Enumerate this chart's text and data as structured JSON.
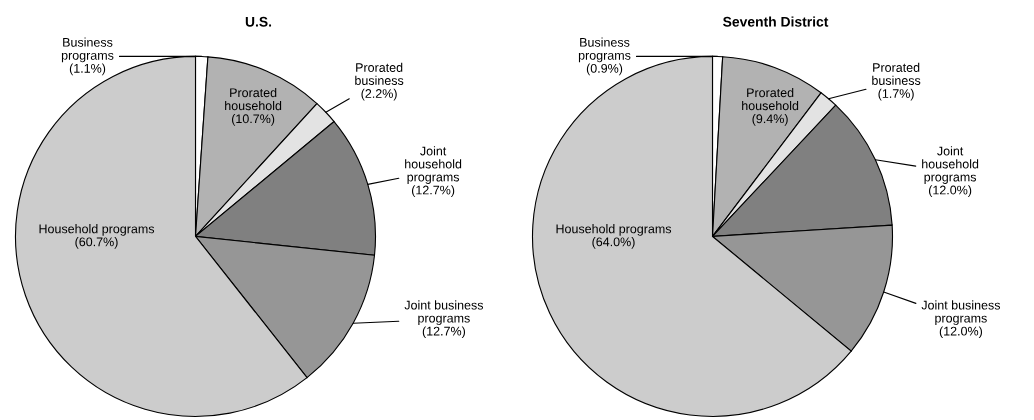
{
  "chart_data": [
    {
      "type": "pie",
      "title": "U.S.",
      "categories": [
        "Business\nprograms",
        "Prorated\nhousehold",
        "Prorated\nbusiness",
        "Joint\nhousehold\nprograms",
        "Joint business\nprograms",
        "Household programs"
      ],
      "values": [
        1.1,
        10.7,
        2.2,
        12.7,
        12.7,
        60.7
      ],
      "colors": [
        "#ffffff",
        "#b2b2b2",
        "#e3e3e3",
        "#808080",
        "#969696",
        "#cccccc"
      ],
      "value_labels": [
        "(1.1%)",
        "(10.7%)",
        "(2.2%)",
        "(12.7%)",
        "(12.7%)",
        "(60.7%)"
      ]
    },
    {
      "type": "pie",
      "title": "Seventh District",
      "categories": [
        "Business\nprograms",
        "Prorated\nhousehold",
        "Prorated\nbusiness",
        "Joint\nhousehold\nprograms",
        "Joint business\nprograms",
        "Household programs"
      ],
      "values": [
        0.9,
        9.4,
        1.7,
        12.0,
        12.0,
        64.0
      ],
      "colors": [
        "#ffffff",
        "#b2b2b2",
        "#e3e3e3",
        "#808080",
        "#969696",
        "#cccccc"
      ],
      "value_labels": [
        "(0.9%)",
        "(9.4%)",
        "(1.7%)",
        "(12.0%)",
        "(12.0%)",
        "(64.0%)"
      ]
    }
  ]
}
